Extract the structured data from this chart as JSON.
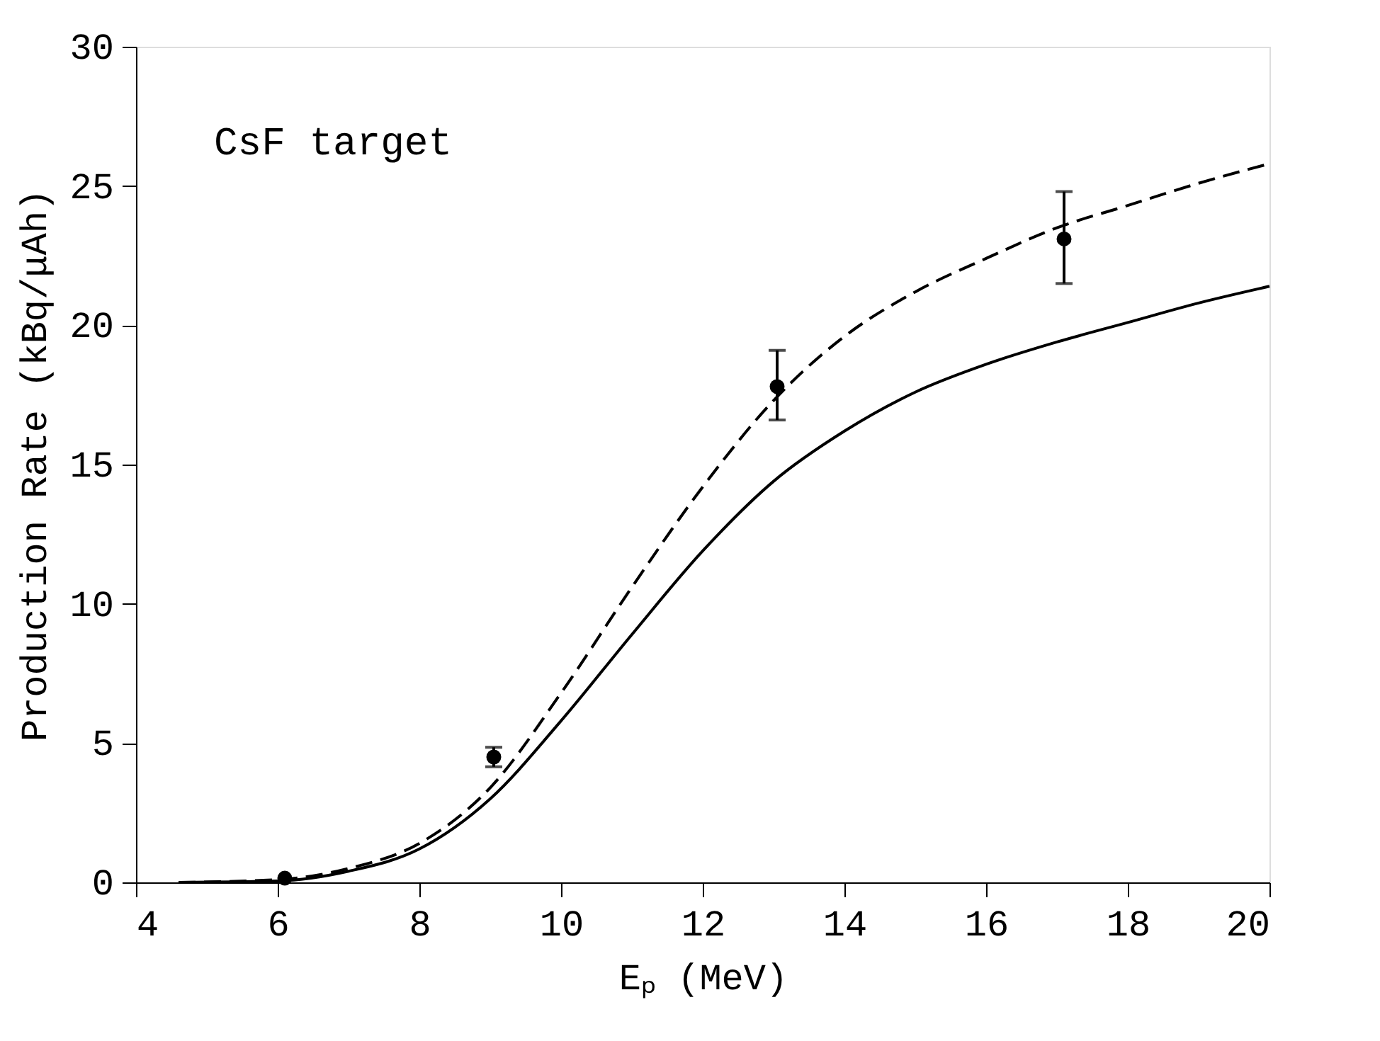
{
  "chart_data": {
    "type": "line",
    "xlabel": "Eₚ (MeV)",
    "ylabel": "Production Rate (kBq/μAh)",
    "annotations": [
      "CsF target"
    ],
    "xlim": [
      4,
      20
    ],
    "ylim": [
      0,
      30
    ],
    "xticks": [
      4,
      6,
      8,
      10,
      12,
      14,
      16,
      18,
      20
    ],
    "yticks": [
      0,
      5,
      10,
      15,
      20,
      25,
      30
    ],
    "grid": false,
    "series": [
      {
        "color": "#000000",
        "line_style": "solid",
        "marker": "none",
        "x": [
          4.6,
          6,
          7,
          8,
          9,
          10,
          11,
          12,
          13,
          14,
          15,
          16,
          17,
          18,
          19,
          20
        ],
        "values": [
          0,
          0.05,
          0.4,
          1.2,
          3.0,
          5.8,
          8.9,
          11.9,
          14.4,
          16.2,
          17.6,
          18.6,
          19.4,
          20.1,
          20.8,
          21.4
        ]
      },
      {
        "color": "#000000",
        "line_style": "dashed",
        "marker": "none",
        "x": [
          4.6,
          6,
          7,
          8,
          9,
          10,
          11,
          12,
          13,
          14,
          15,
          16,
          17,
          18,
          19,
          20
        ],
        "values": [
          0,
          0.1,
          0.5,
          1.4,
          3.4,
          6.8,
          10.6,
          14.2,
          17.3,
          19.6,
          21.2,
          22.4,
          23.5,
          24.3,
          25.1,
          25.8
        ]
      },
      {
        "type": "scatter",
        "color": "#000000",
        "marker": "circle",
        "x": [
          6.1,
          9.05,
          13.05,
          17.1
        ],
        "values": [
          0.15,
          4.5,
          17.8,
          23.1
        ],
        "errors": [
          null,
          [
            4.15,
            4.85
          ],
          [
            16.6,
            19.1
          ],
          [
            21.5,
            24.8
          ]
        ]
      }
    ]
  }
}
